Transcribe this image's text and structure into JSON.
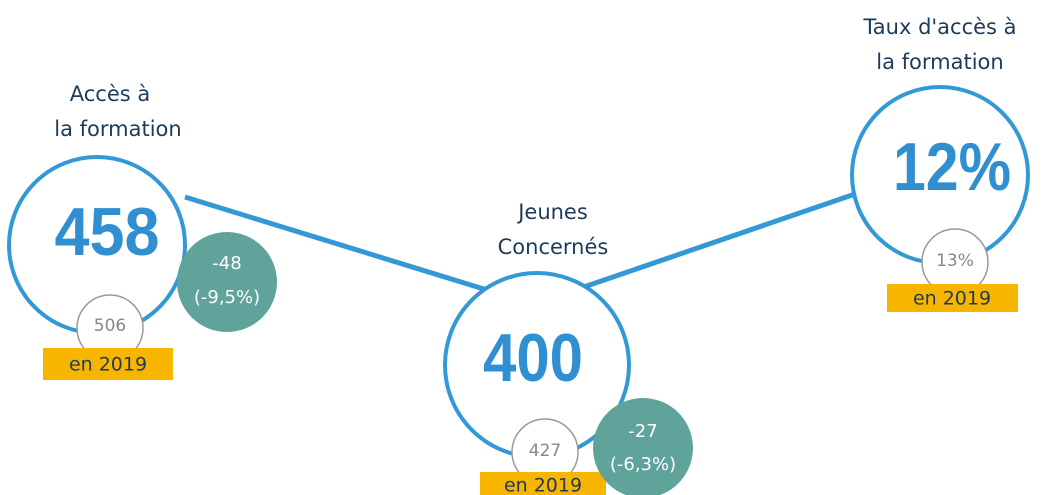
{
  "nodes": [
    {
      "label": [
        "Accès à",
        "la formation"
      ],
      "value": "458",
      "previous": "506",
      "previous_label": "en 2019",
      "change": "-48",
      "change_pct": "(-9,5%)"
    },
    {
      "label": [
        "Jeunes",
        "Concernés"
      ],
      "value": "400",
      "previous": "427",
      "previous_label": "en 2019",
      "change": "-27",
      "change_pct": "(-6,3%)"
    },
    {
      "label": [
        "Taux d'accès à",
        "la formation"
      ],
      "value": "12%",
      "previous": "13%",
      "previous_label": "en 2019"
    }
  ]
}
